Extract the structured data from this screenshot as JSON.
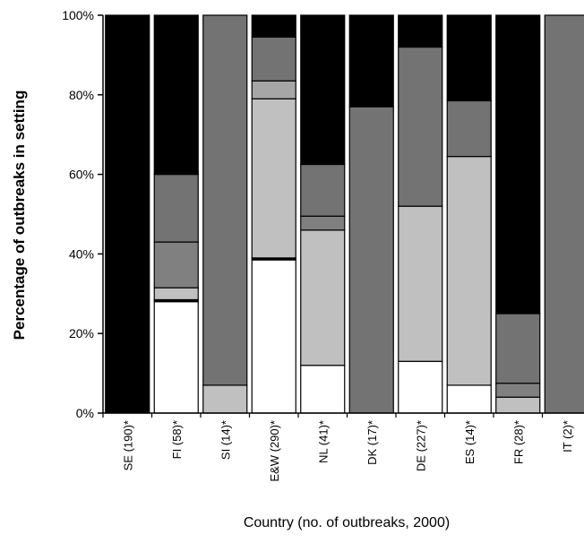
{
  "chart_data": {
    "type": "bar",
    "stacked": true,
    "xlabel": "Country (no. of outbreaks, 2000)",
    "ylabel": "Percentage of outbreaks in setting",
    "ylim": [
      0,
      100
    ],
    "yticks": [
      "0%",
      "20%",
      "40%",
      "60%",
      "80%",
      "100%"
    ],
    "grid": false,
    "legend": "none",
    "categories": [
      "SE (190)*",
      "FI (58)*",
      "SI (14)*",
      "E&W (290)*",
      "NL (41)*",
      "DK (17)*",
      "DE (227)*",
      "ES (14)*",
      "FR (28)*",
      "IT (2)*"
    ],
    "series": [
      {
        "color": "#ffffff",
        "values": [
          0,
          28,
          0,
          38.5,
          12,
          0,
          13,
          7,
          0,
          0
        ]
      },
      {
        "color": "#000000",
        "values": [
          0,
          0.5,
          0,
          0.5,
          0,
          0,
          0,
          0,
          0,
          0
        ]
      },
      {
        "color": "#c0c0c0",
        "values": [
          0,
          3,
          7,
          40,
          34,
          0,
          39,
          57.5,
          4,
          0
        ]
      },
      {
        "color": "#a6a6a6",
        "values": [
          0,
          0,
          0,
          4.5,
          0,
          0,
          0,
          0,
          0,
          0
        ]
      },
      {
        "color": "#808080",
        "values": [
          0,
          11.5,
          0,
          0,
          3.5,
          0,
          0,
          0,
          3.5,
          0
        ]
      },
      {
        "color": "#737373",
        "values": [
          0,
          17,
          93,
          11,
          13,
          77,
          40,
          14,
          17.5,
          100
        ]
      },
      {
        "color": "#000000",
        "values": [
          100,
          40,
          0,
          5.5,
          37.5,
          23,
          8,
          21.5,
          75,
          0
        ]
      }
    ]
  }
}
